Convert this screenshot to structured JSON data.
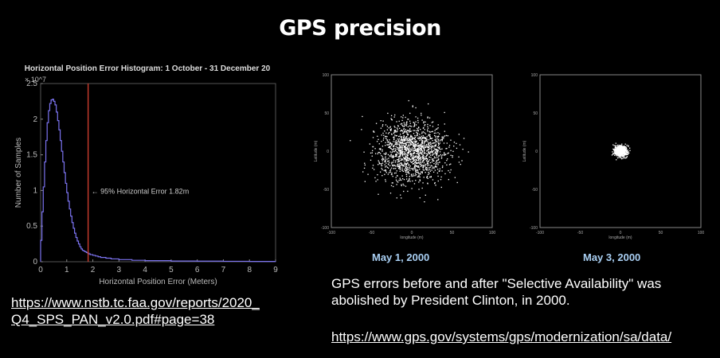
{
  "slide": {
    "title": "GPS precision",
    "caption": "GPS errors before and after \"Selective Availability\" was abolished by President Clinton, in 2000.",
    "link_left_line1": "https://www.nstb.tc.faa.gov/reports/2020_",
    "link_left_line2": "Q4_SPS_PAN_v2.0.pdf#page=38",
    "link_right": "https://www.gps.gov/systems/gps/modernization/sa/data/"
  },
  "chart_data": [
    {
      "type": "line",
      "title": "Horizontal Position Error Histogram: 1 October - 31 December 20",
      "xlabel": "Horizontal Position Error (Meters)",
      "ylabel": "Number of Samples",
      "y_exponent": "× 10^7",
      "xlim": [
        0,
        9
      ],
      "ylim": [
        0,
        2.5
      ],
      "x_ticks": [
        "0",
        "1",
        "2",
        "3",
        "4",
        "5",
        "6",
        "7",
        "8",
        "9"
      ],
      "y_ticks": [
        "0",
        "0.5",
        "1",
        "1.5",
        "2",
        "2.5"
      ],
      "series_color": "#7b73f0",
      "marker_color": "#c0392b",
      "annotation": {
        "text": "95% Horizontal Error 1.82m",
        "x": 1.82
      },
      "x": [
        0.0,
        0.05,
        0.1,
        0.15,
        0.2,
        0.25,
        0.3,
        0.35,
        0.4,
        0.45,
        0.5,
        0.55,
        0.6,
        0.65,
        0.7,
        0.75,
        0.8,
        0.85,
        0.9,
        0.95,
        1.0,
        1.05,
        1.1,
        1.15,
        1.2,
        1.25,
        1.3,
        1.35,
        1.4,
        1.45,
        1.5,
        1.55,
        1.6,
        1.65,
        1.7,
        1.75,
        1.8,
        1.85,
        1.9,
        2.0,
        2.1,
        2.2,
        2.3,
        2.5,
        2.7,
        3.0,
        3.5,
        4.0,
        5.0,
        6.0,
        7.0,
        8.0,
        9.0
      ],
      "values": [
        0.3,
        0.7,
        1.05,
        1.4,
        1.7,
        1.95,
        2.12,
        2.22,
        2.27,
        2.28,
        2.25,
        2.2,
        2.1,
        1.98,
        1.85,
        1.7,
        1.55,
        1.4,
        1.25,
        1.1,
        0.97,
        0.85,
        0.74,
        0.64,
        0.55,
        0.47,
        0.4,
        0.34,
        0.29,
        0.25,
        0.21,
        0.18,
        0.16,
        0.15,
        0.14,
        0.13,
        0.12,
        0.11,
        0.1,
        0.09,
        0.08,
        0.07,
        0.06,
        0.05,
        0.04,
        0.03,
        0.02,
        0.015,
        0.01,
        0.008,
        0.006,
        0.004,
        0.003
      ]
    },
    {
      "type": "scatter",
      "title": "",
      "xlabel": "longitude (m)",
      "ylabel": "Latitude (m)",
      "xlim": [
        -100,
        100
      ],
      "ylim": [
        -100,
        100
      ],
      "x_ticks": [
        "-100",
        "-50",
        "0",
        "50",
        "100"
      ],
      "y_ticks": [
        "-100",
        "-50",
        "0",
        "50",
        "100"
      ],
      "label": "May 1, 2000",
      "spread": 22,
      "n_points": 1500
    },
    {
      "type": "scatter",
      "title": "",
      "xlabel": "longitude (m)",
      "ylabel": "Latitude (m)",
      "xlim": [
        -100,
        100
      ],
      "ylim": [
        -100,
        100
      ],
      "x_ticks": [
        "-100",
        "-50",
        "0",
        "50",
        "100"
      ],
      "y_ticks": [
        "-100",
        "-50",
        "0",
        "50",
        "100"
      ],
      "label": "May 3, 2000",
      "spread": 4,
      "n_points": 700
    }
  ]
}
